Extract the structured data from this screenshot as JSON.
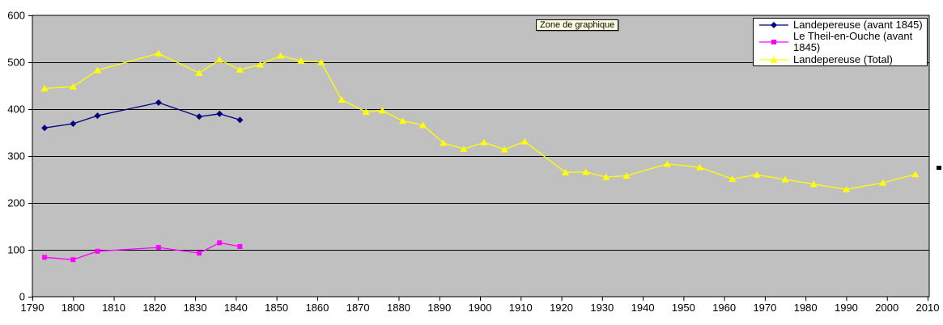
{
  "tooltip": {
    "label": "Zone de graphique"
  },
  "colors": {
    "plot_background": "#c0c0c0",
    "grid": "#000000",
    "axis_text": "#000000",
    "legend_background": "#ffffff",
    "tooltip_background": "#ffffe1",
    "series1": "#000080",
    "series2": "#ff00ff",
    "series3": "#ffff00"
  },
  "chart_data": {
    "type": "line",
    "xlabel": "",
    "ylabel": "",
    "xlim": [
      1790,
      2010
    ],
    "ylim": [
      0,
      600
    ],
    "x_ticks": [
      1790,
      1800,
      1810,
      1820,
      1830,
      1840,
      1850,
      1860,
      1870,
      1880,
      1890,
      1900,
      1910,
      1920,
      1930,
      1940,
      1950,
      1960,
      1970,
      1980,
      1990,
      2000,
      2010
    ],
    "y_ticks": [
      0,
      100,
      200,
      300,
      400,
      500,
      600
    ],
    "grid": "horizontal",
    "legend_position": "top-right",
    "series": [
      {
        "name": "Landepereuse (avant 1845)",
        "color": "#000080",
        "marker": "diamond",
        "points": [
          [
            1793,
            360
          ],
          [
            1800,
            369
          ],
          [
            1806,
            386
          ],
          [
            1821,
            414
          ],
          [
            1831,
            384
          ],
          [
            1836,
            390
          ],
          [
            1841,
            377
          ]
        ]
      },
      {
        "name": "Le Theil-en-Ouche (avant 1845)",
        "color": "#ff00ff",
        "marker": "square",
        "points": [
          [
            1793,
            84
          ],
          [
            1800,
            79
          ],
          [
            1806,
            97
          ],
          [
            1821,
            105
          ],
          [
            1831,
            93
          ],
          [
            1836,
            115
          ],
          [
            1841,
            107
          ]
        ]
      },
      {
        "name": "Landepereuse (Total)",
        "color": "#ffff00",
        "marker": "triangle",
        "points": [
          [
            1793,
            444
          ],
          [
            1800,
            448
          ],
          [
            1806,
            483
          ],
          [
            1821,
            519
          ],
          [
            1831,
            477
          ],
          [
            1836,
            505
          ],
          [
            1841,
            484
          ],
          [
            1846,
            495
          ],
          [
            1851,
            514
          ],
          [
            1856,
            503
          ],
          [
            1861,
            500
          ],
          [
            1866,
            420
          ],
          [
            1872,
            394
          ],
          [
            1876,
            397
          ],
          [
            1881,
            375
          ],
          [
            1886,
            366
          ],
          [
            1891,
            328
          ],
          [
            1896,
            315
          ],
          [
            1901,
            329
          ],
          [
            1906,
            314
          ],
          [
            1911,
            331
          ],
          [
            1921,
            265
          ],
          [
            1926,
            266
          ],
          [
            1931,
            255
          ],
          [
            1936,
            258
          ],
          [
            1946,
            283
          ],
          [
            1954,
            276
          ],
          [
            1962,
            251
          ],
          [
            1968,
            260
          ],
          [
            1975,
            250
          ],
          [
            1982,
            240
          ],
          [
            1990,
            229
          ],
          [
            1999,
            243
          ],
          [
            2007,
            261
          ]
        ]
      }
    ]
  }
}
